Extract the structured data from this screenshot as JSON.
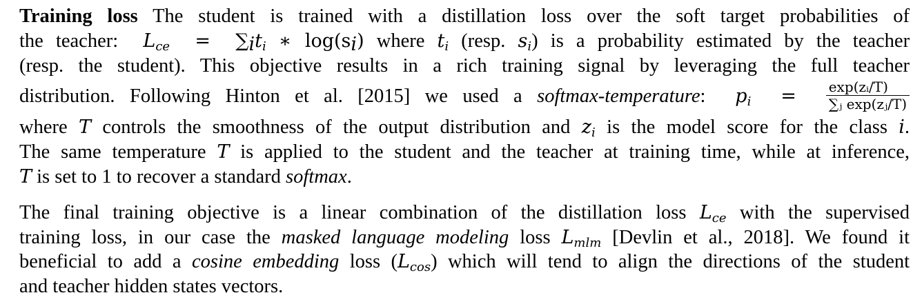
{
  "paragraph1": {
    "heading": "Training loss",
    "line1_text": "The student is trained with a distillation loss over the soft target probabilities of",
    "line2_a": "the teacher:",
    "line2_formula": "L",
    "line2_formula_sub": "ce",
    "line2_eq": "=",
    "line2_sum": "∑",
    "line2_sum_sub": "i",
    "line2_rest": "t",
    "line2_rest_sub": "i",
    "line2_rest2": "∗ log(s",
    "line2_rest2_sub": "i",
    "line2_rest3": ")",
    "line2_b": "where",
    "line2_t": "t",
    "line2_t_sub": "i",
    "line2_c": "(resp.",
    "line2_s": "s",
    "line2_s_sub": "i",
    "line2_d": ") is a probability estimated by the teacher",
    "line3": "(resp.  the student).  This objective results in a rich training signal by leveraging the full teacher",
    "line4_a": "distribution.  Following Hinton et al. [2015] we used a",
    "line4_italic": "softmax-temperature",
    "line4_colon": ":",
    "line4_p": "p",
    "line4_p_sub": "i",
    "line4_eq": "=",
    "frac_num": "exp(zᵢ/T)",
    "frac_den": "∑ⱼ exp(zⱼ/T)",
    "line5_a": "where",
    "line5_T": "T",
    "line5_b": "controls the smoothness of the output distribution and",
    "line5_z": "z",
    "line5_z_sub": "i",
    "line5_c": "is the model score for the class",
    "line5_i": "i",
    "line5_d": ".",
    "line6_a": "The same temperature",
    "line6_T": "T",
    "line6_b": "is applied to the student and the teacher at training time, while at inference,",
    "line7_T": "T",
    "line7_a": "is set to 1 to recover a standard",
    "line7_italic": "softmax",
    "line7_end": "."
  },
  "paragraph2": {
    "line1_a": "The final training objective is a linear combination of the distillation loss",
    "line1_L": "L",
    "line1_L_sub": "ce",
    "line1_b": "with the supervised",
    "line2_a": "training loss, in our case the",
    "line2_italic": "masked language modeling",
    "line2_b": "loss",
    "line2_L": "L",
    "line2_L_sub": "mlm",
    "line2_c": "[Devlin et al., 2018]. We found it",
    "line3_a": "beneficial to add a",
    "line3_italic": "cosine embedding",
    "line3_b": "loss (",
    "line3_L": "L",
    "line3_L_sub": "cos",
    "line3_c": ") which will tend to align the directions of the student",
    "line4": "and teacher hidden states vectors."
  }
}
